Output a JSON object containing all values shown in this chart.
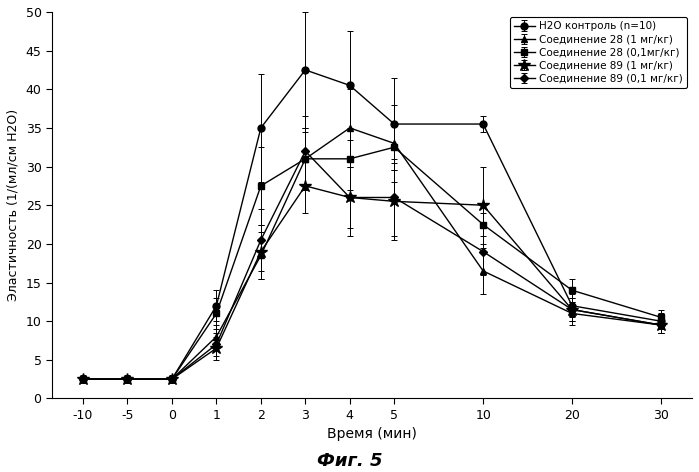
{
  "x_positions": [
    -10,
    -5,
    0,
    1,
    2,
    3,
    4,
    5,
    10,
    20,
    30
  ],
  "x_tick_labels": [
    "-10",
    "-5",
    "0",
    "1",
    "2",
    "3",
    "4",
    "5",
    "10",
    "20",
    "30"
  ],
  "series": [
    {
      "label": "H2O контроль (n=10)",
      "marker": "o",
      "color": "#000000",
      "y": [
        2.5,
        2.5,
        2.5,
        12.0,
        35.0,
        42.5,
        40.5,
        35.5,
        35.5,
        12.0,
        10.0
      ],
      "yerr": [
        0.5,
        0.5,
        0.5,
        2.0,
        7.0,
        7.5,
        7.0,
        6.0,
        1.0,
        1.5,
        1.0
      ]
    },
    {
      "label": "Соединение 28 (1 мг/кг)",
      "marker": "^",
      "color": "#000000",
      "y": [
        2.5,
        2.5,
        2.5,
        8.0,
        18.5,
        31.0,
        35.0,
        33.0,
        16.5,
        11.0,
        9.5
      ],
      "yerr": [
        0.3,
        0.3,
        0.3,
        1.5,
        3.0,
        4.0,
        5.0,
        5.0,
        3.0,
        1.5,
        1.0
      ]
    },
    {
      "label": "Соединение 28 (0,1мг/кг)",
      "marker": "s",
      "color": "#000000",
      "y": [
        2.5,
        2.5,
        2.5,
        11.0,
        27.5,
        31.0,
        31.0,
        32.5,
        22.5,
        14.0,
        10.5
      ],
      "yerr": [
        0.3,
        0.3,
        0.3,
        2.0,
        5.0,
        3.5,
        4.0,
        3.0,
        1.5,
        1.5,
        1.0
      ]
    },
    {
      "label": "Соединение 89 (1 мг/кг)",
      "marker": "*",
      "color": "#000000",
      "y": [
        2.5,
        2.5,
        2.5,
        6.5,
        19.0,
        27.5,
        26.0,
        25.5,
        25.0,
        11.5,
        9.5
      ],
      "yerr": [
        0.3,
        0.3,
        0.3,
        1.5,
        3.5,
        3.5,
        4.0,
        5.0,
        5.0,
        1.5,
        1.0
      ]
    },
    {
      "label": "Соединение 89 (0,1 мг/кг)",
      "marker": "D",
      "color": "#000000",
      "y": [
        2.5,
        2.5,
        2.5,
        7.0,
        20.5,
        32.0,
        26.0,
        26.0,
        19.0,
        11.5,
        9.5
      ],
      "yerr": [
        0.3,
        0.3,
        0.3,
        1.5,
        4.0,
        4.5,
        5.0,
        5.0,
        3.0,
        1.5,
        1.0
      ]
    }
  ],
  "ylabel": "Эластичность (1/(мл/см H2O)",
  "xlabel": "Время (мин)",
  "title": "Фиг. 5",
  "ylim": [
    0,
    50
  ],
  "yticks": [
    0,
    5,
    10,
    15,
    20,
    25,
    30,
    35,
    40,
    45,
    50
  ],
  "background_color": "#ffffff",
  "capsize": 2,
  "linewidth": 1.0,
  "markersize": 5,
  "x_spacing": [
    -10,
    -5,
    0,
    1,
    2,
    3,
    4,
    5,
    10,
    20,
    30
  ],
  "x_plot": [
    0,
    1,
    2,
    3,
    4,
    5,
    6,
    7,
    9,
    11,
    13
  ]
}
